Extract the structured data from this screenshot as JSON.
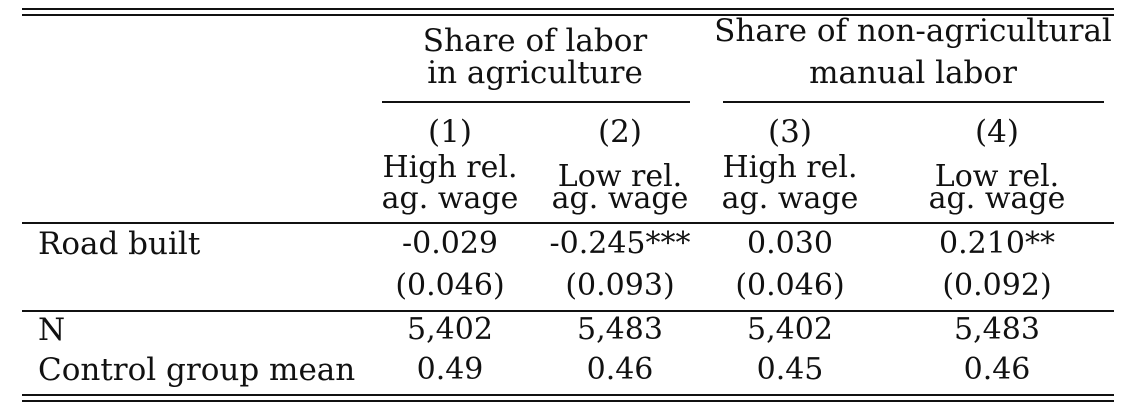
{
  "table": {
    "panel_headers": [
      {
        "line1": "Share of labor",
        "line2": "in agriculture"
      },
      {
        "line1": "Share of non-agricultural",
        "line2": "manual labor"
      }
    ],
    "columns": [
      {
        "num": "(1)",
        "sub1": "High rel.",
        "sub2": "ag. wage"
      },
      {
        "num": "(2)",
        "sub1": "Low rel.",
        "sub2": "ag. wage"
      },
      {
        "num": "(3)",
        "sub1": "High rel.",
        "sub2": "ag. wage"
      },
      {
        "num": "(4)",
        "sub1": "Low rel.",
        "sub2": "ag. wage"
      }
    ],
    "rows": [
      {
        "label": "Road built",
        "values": [
          "-0.029",
          "-0.245***",
          "0.030",
          "0.210**"
        ]
      },
      {
        "label": "",
        "values": [
          "(0.046)",
          "(0.093)",
          "(0.046)",
          "(0.092)"
        ]
      },
      {
        "label": "N",
        "values": [
          "5,402",
          "5,483",
          "5,402",
          "5,483"
        ]
      },
      {
        "label": "Control group mean",
        "values": [
          "0.49",
          "0.46",
          "0.45",
          "0.46"
        ]
      }
    ]
  }
}
